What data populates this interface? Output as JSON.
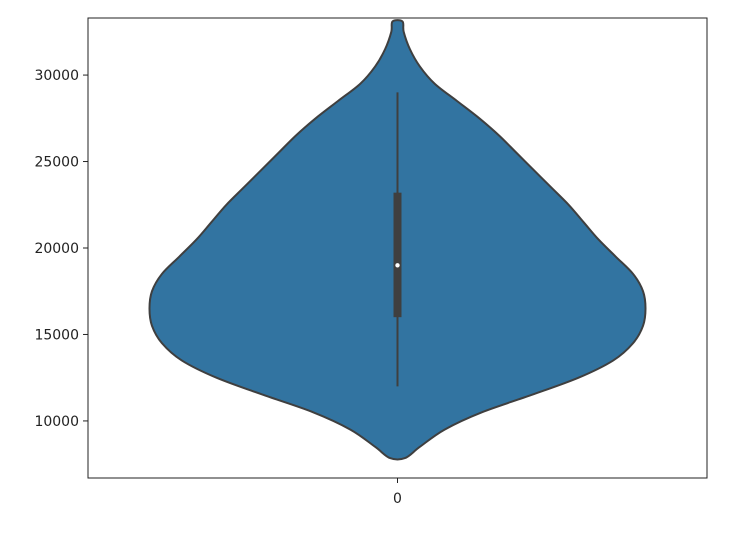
{
  "chart_data": {
    "type": "violin",
    "categories": [
      "0"
    ],
    "xlabel": "",
    "ylabel": "",
    "ylim": [
      6700,
      33300
    ],
    "yticks": [
      10000,
      15000,
      20000,
      25000,
      30000
    ],
    "ytick_labels": [
      "10000",
      "15000",
      "20000",
      "25000",
      "30000"
    ],
    "grid": false,
    "legend": "none",
    "colors": {
      "violin_fill": "#3274a1",
      "violin_edge": "#3f3f3f",
      "box": "#3f3f3f",
      "median_dot": "#ffffff"
    },
    "series": [
      {
        "density_profile": [
          {
            "y": 7850,
            "half_width_frac": 0.03
          },
          {
            "y": 8500,
            "half_width_frac": 0.09
          },
          {
            "y": 9500,
            "half_width_frac": 0.19
          },
          {
            "y": 10500,
            "half_width_frac": 0.34
          },
          {
            "y": 11500,
            "half_width_frac": 0.54
          },
          {
            "y": 12500,
            "half_width_frac": 0.73
          },
          {
            "y": 13500,
            "half_width_frac": 0.87
          },
          {
            "y": 14500,
            "half_width_frac": 0.95
          },
          {
            "y": 15500,
            "half_width_frac": 0.99
          },
          {
            "y": 16500,
            "half_width_frac": 1.0
          },
          {
            "y": 17500,
            "half_width_frac": 0.99
          },
          {
            "y": 18500,
            "half_width_frac": 0.95
          },
          {
            "y": 19500,
            "half_width_frac": 0.88
          },
          {
            "y": 20500,
            "half_width_frac": 0.81
          },
          {
            "y": 21500,
            "half_width_frac": 0.75
          },
          {
            "y": 22500,
            "half_width_frac": 0.69
          },
          {
            "y": 23500,
            "half_width_frac": 0.62
          },
          {
            "y": 24500,
            "half_width_frac": 0.55
          },
          {
            "y": 25500,
            "half_width_frac": 0.48
          },
          {
            "y": 26500,
            "half_width_frac": 0.41
          },
          {
            "y": 27500,
            "half_width_frac": 0.33
          },
          {
            "y": 28500,
            "half_width_frac": 0.24
          },
          {
            "y": 29500,
            "half_width_frac": 0.15
          },
          {
            "y": 30500,
            "half_width_frac": 0.09
          },
          {
            "y": 31500,
            "half_width_frac": 0.05
          },
          {
            "y": 32500,
            "half_width_frac": 0.025
          },
          {
            "y": 33100,
            "half_width_frac": 0.02
          }
        ],
        "whisker_low": 12000,
        "q1": 16000,
        "median": 19000,
        "q3": 23200,
        "whisker_high": 29000
      }
    ]
  }
}
